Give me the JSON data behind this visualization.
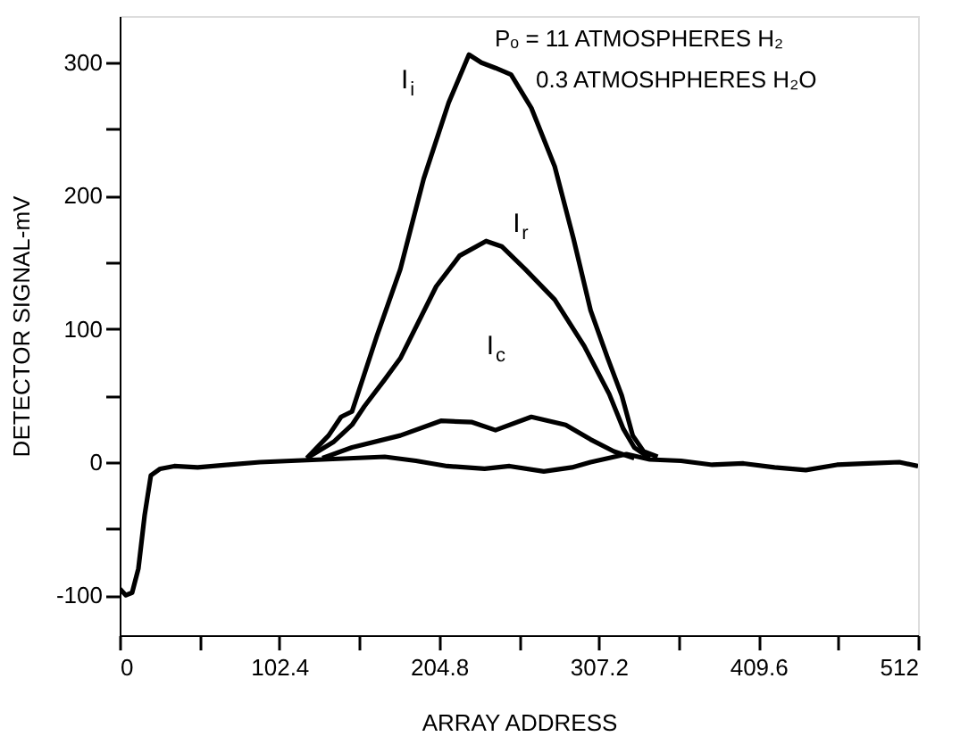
{
  "chart_data": {
    "type": "line",
    "xlabel": "ARRAY ADDRESS",
    "ylabel": "DETECTOR SIGNAL-mV",
    "annotations": [
      "Pₒ = 11 ATMOSPHERES H₂",
      "0.3 ATMOSHPHERES H₂O"
    ],
    "xlim": [
      0,
      512
    ],
    "ylim": [
      -130,
      335
    ],
    "xticks": [
      0,
      {
        "value": 51.2,
        "label": null
      },
      102.4,
      {
        "value": 153.6,
        "label": null
      },
      204.8,
      {
        "value": 256,
        "label": null
      },
      307.2,
      {
        "value": 358.4,
        "label": null
      },
      409.6,
      {
        "value": 460.8,
        "label": null
      },
      512
    ],
    "yticks": [
      -100,
      {
        "value": -50,
        "label": null
      },
      0,
      {
        "value": 50,
        "label": null
      },
      100,
      {
        "value": 150,
        "label": null
      },
      200,
      {
        "value": 250,
        "label": null
      },
      300
    ],
    "grid": false,
    "legend": false,
    "marker": "none",
    "line_style": "solid",
    "series": [
      {
        "name": "I$_{i}$",
        "color": "#000000",
        "x": [
          120,
          134,
          142,
          149,
          165,
          180,
          195,
          211,
          224,
          232,
          241,
          251,
          264,
          279,
          291,
          302,
          313,
          322,
          329,
          336,
          345
        ],
        "values": [
          3,
          20,
          34,
          38,
          95,
          145,
          213,
          270,
          306,
          300,
          296,
          291,
          266,
          222,
          168,
          114,
          78,
          50,
          20,
          8,
          4
        ]
      },
      {
        "name": "I$_{r}$",
        "color": "#000000",
        "x": [
          120,
          137,
          149,
          157,
          170,
          180,
          203,
          218,
          235,
          245,
          260,
          279,
          298,
          314,
          323,
          330,
          340
        ],
        "values": [
          3,
          15,
          28,
          42,
          62,
          78,
          132,
          155,
          166,
          162,
          145,
          122,
          87,
          51,
          25,
          11,
          3
        ]
      },
      {
        "name": "I$_{c}$",
        "color": "#000000",
        "x": [
          130,
          149,
          180,
          206,
          226,
          241,
          264,
          286,
          302,
          317,
          330
        ],
        "values": [
          3,
          11,
          20,
          31,
          30,
          24,
          34,
          28,
          17,
          8,
          3
        ]
      },
      {
        "color": "#000000",
        "x": [
          0,
          4,
          8,
          12,
          16,
          20,
          26,
          35,
          50,
          70,
          90,
          110,
          130,
          150,
          170,
          190,
          210,
          234,
          250,
          272,
          290,
          302,
          325,
          340,
          360,
          380,
          400,
          420,
          440,
          460,
          480,
          500,
          512
        ],
        "values": [
          -95,
          -100,
          -98,
          -80,
          -40,
          -10,
          -5,
          -3,
          -4,
          -2,
          0,
          1,
          2,
          3,
          4,
          1,
          -3,
          -5,
          -3,
          -7,
          -4,
          0,
          6,
          2,
          1,
          -2,
          -1,
          -4,
          -6,
          -2,
          -1,
          0,
          -3
        ]
      }
    ]
  }
}
